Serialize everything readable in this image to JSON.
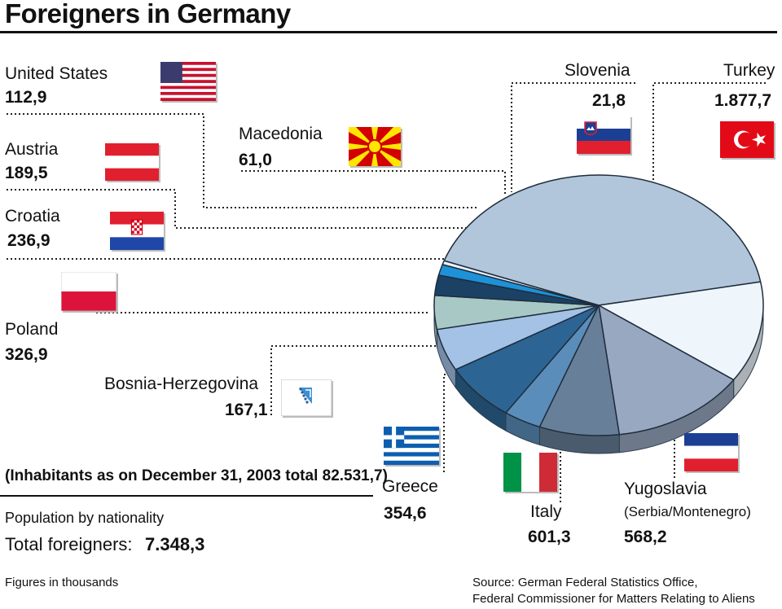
{
  "title": "Foreigners in Germany",
  "note_inhabitants": "(Inhabitants as on December 31, 2003 total 82.531,7)",
  "note_population": "Population by nationality",
  "total_label": "Total foreigners:",
  "total_value": "7.348,3",
  "units_note": "Figures in thousands",
  "source_line1": "Source: German Federal Statistics Office,",
  "source_line2": "Federal Commissioner for Matters Relating to Aliens",
  "labels": {
    "united_states": {
      "name": "United States",
      "value": "112,9"
    },
    "austria": {
      "name": "Austria",
      "value": "189,5"
    },
    "croatia": {
      "name": "Croatia",
      "value": "236,9"
    },
    "poland": {
      "name": "Poland",
      "value": "326,9"
    },
    "bosnia": {
      "name": "Bosnia-Herzegovina",
      "value": "167,1"
    },
    "greece": {
      "name": "Greece",
      "value": "354,6"
    },
    "italy": {
      "name": "Italy",
      "value": "601,3"
    },
    "yugoslavia": {
      "name": "Yugoslavia",
      "sub": "(Serbia/Montenegro)",
      "value": "568,2"
    },
    "macedonia": {
      "name": "Macedonia",
      "value": "61,0"
    },
    "slovenia": {
      "name": "Slovenia",
      "value": "21,8"
    },
    "turkey": {
      "name": "Turkey",
      "value": "1.877,7"
    }
  },
  "chart_data": {
    "type": "pie",
    "title": "Foreigners in Germany",
    "categories": [
      "Turkey",
      "Yugoslavia (Serbia/Montenegro)",
      "Italy",
      "Greece",
      "Bosnia-Herzegovina",
      "Poland",
      "Croatia",
      "Austria",
      "United States",
      "Macedonia",
      "Slovenia"
    ],
    "values": [
      1877.7,
      568.2,
      601.3,
      354.6,
      167.1,
      326.9,
      236.9,
      189.5,
      112.9,
      61.0,
      21.8
    ],
    "colors": [
      "#b1c6da",
      "#eef5fb",
      "#98a8c1",
      "#687f99",
      "#5b8dba",
      "#2c6593",
      "#a4c2e6",
      "#a8c8c6",
      "#1b4265",
      "#1d92d8",
      "#eaf2fa"
    ],
    "total": 7348.3,
    "unit": "thousands",
    "legend": "none"
  },
  "flags": {
    "united_states": "us-flag-icon",
    "austria": "austria-flag-icon",
    "croatia": "croatia-flag-icon",
    "poland": "poland-flag-icon",
    "bosnia": "bosnia-flag-icon",
    "greece": "greece-flag-icon",
    "italy": "italy-flag-icon",
    "yugoslavia": "yugoslavia-flag-icon",
    "macedonia": "macedonia-flag-icon",
    "slovenia": "slovenia-flag-icon",
    "turkey": "turkey-flag-icon"
  }
}
